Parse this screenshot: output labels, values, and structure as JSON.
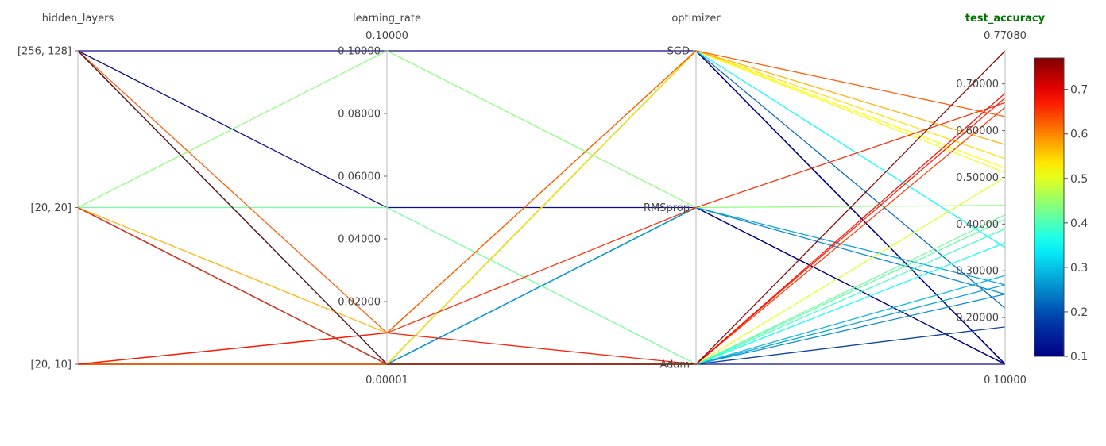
{
  "chart_data": {
    "type": "parallel_coordinates",
    "axes": [
      {
        "key": "hidden_layers",
        "label": "hidden_layers",
        "kind": "categorical",
        "categories": [
          "[20, 10]",
          "[20, 20]",
          "[256, 128]"
        ]
      },
      {
        "key": "learning_rate",
        "label": "learning_rate",
        "kind": "numeric",
        "range": [
          1e-05,
          0.1
        ],
        "range_labels": [
          "0.00001",
          "0.10000"
        ],
        "ticks": [
          0.02,
          0.04,
          0.06,
          0.08,
          0.1
        ],
        "tick_labels": [
          "0.02000",
          "0.04000",
          "0.06000",
          "0.08000",
          "0.10000"
        ]
      },
      {
        "key": "optimizer",
        "label": "optimizer",
        "kind": "categorical",
        "categories": [
          "Adam",
          "RMSprop",
          "SGD"
        ]
      },
      {
        "key": "test_accuracy",
        "label": "test_accuracy",
        "kind": "numeric",
        "active": true,
        "range": [
          0.1,
          0.7708
        ],
        "range_labels": [
          "0.10000",
          "0.77080"
        ],
        "ticks": [
          0.2,
          0.3,
          0.4,
          0.5,
          0.6,
          0.7
        ],
        "tick_labels": [
          "0.20000",
          "0.30000",
          "0.40000",
          "0.50000",
          "0.60000",
          "0.70000"
        ]
      }
    ],
    "colorscale": "jet",
    "color_range": [
      0.1,
      0.7708
    ],
    "colorbar_ticks": [
      0.1,
      0.2,
      0.3,
      0.4,
      0.5,
      0.6,
      0.7
    ],
    "colorbar_tick_labels": [
      "0.1",
      "0.2",
      "0.3",
      "0.4",
      "0.5",
      "0.6",
      "0.7"
    ],
    "rows": [
      {
        "hidden_layers": "[256, 128]",
        "learning_rate": 0.1,
        "optimizer": "SGD",
        "test_accuracy": 0.1
      },
      {
        "hidden_layers": "[256, 128]",
        "learning_rate": 0.05,
        "optimizer": "RMSprop",
        "test_accuracy": 0.1
      },
      {
        "hidden_layers": "[256, 128]",
        "learning_rate": 1e-05,
        "optimizer": "SGD",
        "test_accuracy": 0.1
      },
      {
        "hidden_layers": "[256, 128]",
        "learning_rate": 1e-05,
        "optimizer": "SGD",
        "test_accuracy": 0.22
      },
      {
        "hidden_layers": "[256, 128]",
        "learning_rate": 1e-05,
        "optimizer": "SGD",
        "test_accuracy": 0.35
      },
      {
        "hidden_layers": "[256, 128]",
        "learning_rate": 1e-05,
        "optimizer": "RMSprop",
        "test_accuracy": 0.25
      },
      {
        "hidden_layers": "[256, 128]",
        "learning_rate": 1e-05,
        "optimizer": "Adam",
        "test_accuracy": 0.7708
      },
      {
        "hidden_layers": "[256, 128]",
        "learning_rate": 0.01,
        "optimizer": "SGD",
        "test_accuracy": 0.63
      },
      {
        "hidden_layers": "[20, 20]",
        "learning_rate": 0.1,
        "optimizer": "RMSprop",
        "test_accuracy": 0.44
      },
      {
        "hidden_layers": "[20, 20]",
        "learning_rate": 0.05,
        "optimizer": "Adam",
        "test_accuracy": 0.42
      },
      {
        "hidden_layers": "[20, 20]",
        "learning_rate": 0.01,
        "optimizer": "SGD",
        "test_accuracy": 0.57
      },
      {
        "hidden_layers": "[20, 20]",
        "learning_rate": 1e-05,
        "optimizer": "Adam",
        "test_accuracy": 0.65
      },
      {
        "hidden_layers": "[20, 20]",
        "learning_rate": 1e-05,
        "optimizer": "SGD",
        "test_accuracy": 0.1
      },
      {
        "hidden_layers": "[20, 20]",
        "learning_rate": 1e-05,
        "optimizer": "RMSprop",
        "test_accuracy": 0.1
      },
      {
        "hidden_layers": "[20, 10]",
        "learning_rate": 1e-05,
        "optimizer": "Adam",
        "test_accuracy": 0.41
      },
      {
        "hidden_layers": "[20, 10]",
        "learning_rate": 0.01,
        "optimizer": "RMSprop",
        "test_accuracy": 0.66
      },
      {
        "hidden_layers": "[20, 10]",
        "learning_rate": 0.01,
        "optimizer": "Adam",
        "test_accuracy": 0.67
      },
      {
        "hidden_layers": "[20, 10]",
        "learning_rate": 1e-05,
        "optimizer": "SGD",
        "test_accuracy": 0.54
      },
      {
        "hidden_layers": "[20, 10]",
        "learning_rate": 1e-05,
        "optimizer": "SGD",
        "test_accuracy": 0.52
      },
      {
        "hidden_layers": "[20, 10]",
        "learning_rate": 1e-05,
        "optimizer": "SGD",
        "test_accuracy": 0.51
      },
      {
        "hidden_layers": "[20, 10]",
        "learning_rate": 1e-05,
        "optimizer": "Adam",
        "test_accuracy": 0.68
      },
      {
        "hidden_layers": "[20, 10]",
        "learning_rate": 1e-05,
        "optimizer": "Adam",
        "test_accuracy": 0.5
      },
      {
        "hidden_layers": "[20, 10]",
        "learning_rate": 1e-05,
        "optimizer": "Adam",
        "test_accuracy": 0.39
      },
      {
        "hidden_layers": "[20, 10]",
        "learning_rate": 1e-05,
        "optimizer": "Adam",
        "test_accuracy": 0.36
      },
      {
        "hidden_layers": "[20, 10]",
        "learning_rate": 1e-05,
        "optimizer": "Adam",
        "test_accuracy": 0.29
      },
      {
        "hidden_layers": "[20, 10]",
        "learning_rate": 1e-05,
        "optimizer": "Adam",
        "test_accuracy": 0.27
      },
      {
        "hidden_layers": "[20, 10]",
        "learning_rate": 1e-05,
        "optimizer": "Adam",
        "test_accuracy": 0.25
      },
      {
        "hidden_layers": "[20, 10]",
        "learning_rate": 1e-05,
        "optimizer": "Adam",
        "test_accuracy": 0.18
      },
      {
        "hidden_layers": "[20, 10]",
        "learning_rate": 1e-05,
        "optimizer": "Adam",
        "test_accuracy": 0.1
      },
      {
        "hidden_layers": "[20, 10]",
        "learning_rate": 1e-05,
        "optimizer": "RMSprop",
        "test_accuracy": 0.27
      },
      {
        "hidden_layers": "[20, 10]",
        "learning_rate": 1e-05,
        "optimizer": "SGD",
        "test_accuracy": 0.1
      }
    ]
  }
}
